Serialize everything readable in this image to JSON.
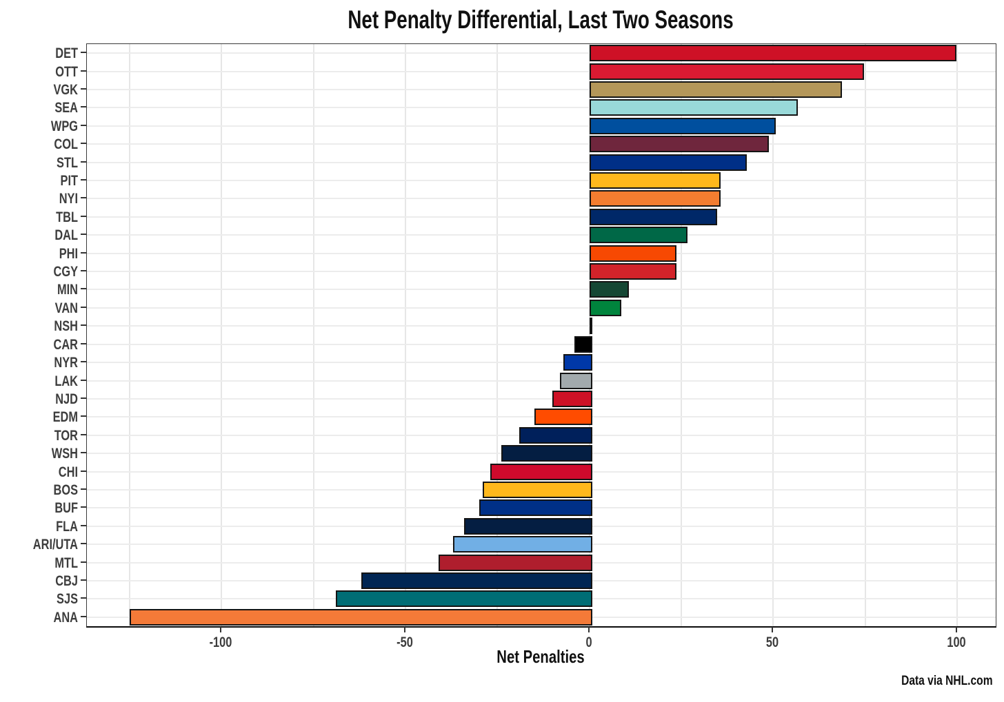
{
  "title": "Net Penalty Differential, Last Two Seasons",
  "caption": "Data via NHL.com",
  "chart_data": {
    "type": "bar",
    "orientation": "horizontal",
    "title": "Net Penalty Differential, Last Two Seasons",
    "xlabel": "Net Penalties",
    "categories": [
      "DET",
      "OTT",
      "VGK",
      "SEA",
      "WPG",
      "COL",
      "STL",
      "PIT",
      "NYI",
      "TBL",
      "DAL",
      "PHI",
      "CGY",
      "MIN",
      "VAN",
      "NSH",
      "CAR",
      "NYR",
      "LAK",
      "NJD",
      "EDM",
      "TOR",
      "WSH",
      "CHI",
      "BOS",
      "BUF",
      "FLA",
      "ARI/UTA",
      "MTL",
      "CBJ",
      "SJS",
      "ANA"
    ],
    "values": [
      99,
      74,
      68,
      56,
      50,
      48,
      42,
      35,
      35,
      34,
      26,
      23,
      23,
      10,
      8,
      0,
      -4,
      -7,
      -8,
      -10,
      -15,
      -19,
      -24,
      -27,
      -29,
      -30,
      -34,
      -37,
      -41,
      -62,
      -69,
      -125
    ],
    "bar_colors": [
      "#CE1126",
      "#DA1A32",
      "#B4975A",
      "#99D9D9",
      "#004F9E",
      "#6F263D",
      "#002F87",
      "#FFB81C",
      "#F47D30",
      "#002868",
      "#006847",
      "#F74902",
      "#D2232A",
      "#154734",
      "#00843D",
      "#FFB81C",
      "#010101",
      "#0038A8",
      "#A2AAAD",
      "#CE1126",
      "#FF4C00",
      "#00205B",
      "#041E42",
      "#CF0A2C",
      "#FFB81C",
      "#003087",
      "#041E42",
      "#71AFE5",
      "#AF1E2D",
      "#002654",
      "#006D75",
      "#F47A38"
    ],
    "xlim": [
      -136.6,
      110.5
    ],
    "xticks": [
      -100,
      -50,
      0,
      50,
      100
    ],
    "xtick_labels": [
      "-100",
      "-50",
      "0",
      "50",
      "100"
    ],
    "gridline_step": 25,
    "grid": "on",
    "legend": "none",
    "bar_border_color": "#141414",
    "grid_color": "#e8e8e8",
    "background": "#ffffff",
    "caption": "Data via NHL.com"
  }
}
